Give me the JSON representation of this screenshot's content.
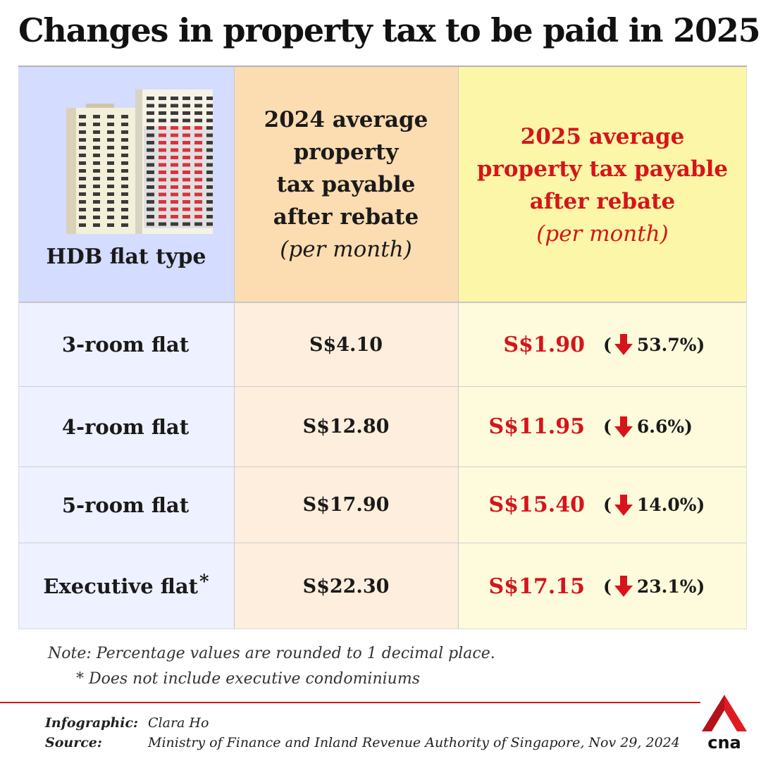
{
  "title": "Changes in property tax to be paid in 2025",
  "table": {
    "headers": {
      "flat_type": "HDB flat type",
      "col_2024_bold": [
        "2024 average",
        "property",
        "tax payable",
        "after rebate"
      ],
      "col_2024_italic": "(per month)",
      "col_2025_bold": [
        "2025 average",
        "property tax payable",
        "after rebate"
      ],
      "col_2025_italic": "(per month)"
    },
    "rows": [
      {
        "flat": "3-room flat",
        "asterisk": "",
        "tax_2024": "S$4.10",
        "tax_2025": "S$1.90",
        "change_open": "(",
        "change": "53.7%)"
      },
      {
        "flat": "4-room flat",
        "asterisk": "",
        "tax_2024": "S$12.80",
        "tax_2025": "S$11.95",
        "change_open": "(",
        "change": "6.6%)"
      },
      {
        "flat": "5-room flat",
        "asterisk": "",
        "tax_2024": "S$17.90",
        "tax_2025": "S$15.40",
        "change_open": "(",
        "change": "14.0%)"
      },
      {
        "flat": "Executive flat",
        "asterisk": "*",
        "tax_2024": "S$22.30",
        "tax_2025": "S$17.15",
        "change_open": "(",
        "change": "23.1%)"
      }
    ]
  },
  "chart_data": {
    "type": "table",
    "columns": [
      "HDB flat type",
      "2024 average property tax payable after rebate (per month)",
      "2025 average property tax payable after rebate (per month)",
      "Change"
    ],
    "rows": [
      [
        "3-room flat",
        "S$4.10",
        "S$1.90",
        "-53.7%"
      ],
      [
        "4-room flat",
        "S$12.80",
        "S$11.95",
        "-6.6%"
      ],
      [
        "5-room flat",
        "S$17.90",
        "S$15.40",
        "-14.0%"
      ],
      [
        "Executive flat*",
        "S$22.30",
        "S$17.15",
        "-23.1%"
      ]
    ]
  },
  "notes": {
    "line1": "Note:  Percentage values are rounded to 1 decimal place.",
    "line2": "*  Does not include executive condominiums"
  },
  "credits": {
    "infographic_label": "Infographic:",
    "infographic_value": "Clara Ho",
    "source_label": "Source:",
    "source_value": "Ministry of Finance and Inland Revenue Authority of Singapore, Nov 29, 2024"
  },
  "logo": {
    "text": "cna",
    "icon": "cna-logo-icon"
  },
  "colors": {
    "accent_red": "#d6141a",
    "header_blue": "#d4dcff",
    "header_orange": "#fcdcb1",
    "header_yellow": "#fcf7a8"
  }
}
